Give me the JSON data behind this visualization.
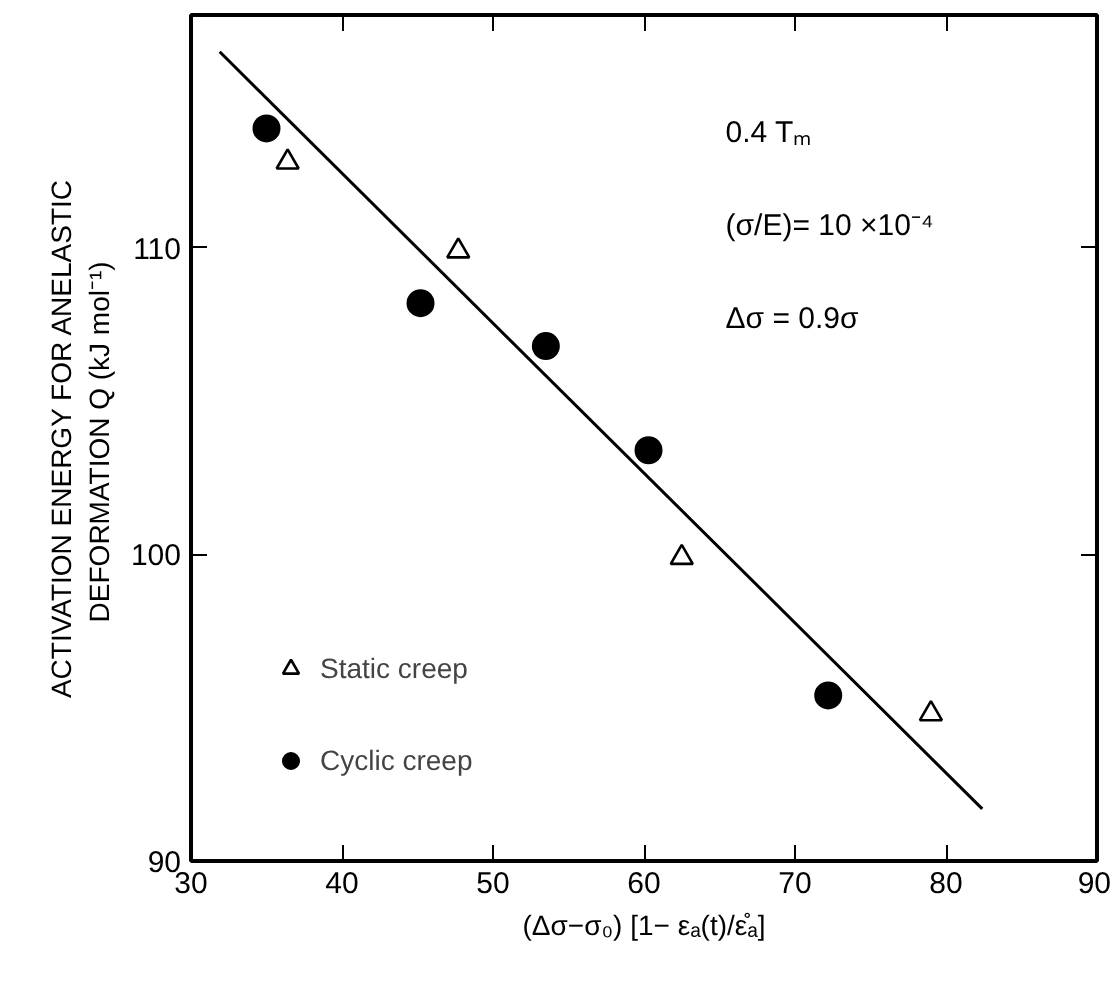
{
  "chart_data": {
    "type": "scatter",
    "xlabel": "(Δσ−σ₀) [1− εₐ(t)/ε̊ₐ]",
    "ylabel": "ACTIVATION ENERGY FOR ANELASTIC\nDEFORMATION  Q (kJ mol⁻¹)",
    "annotations": [
      "0.4 Tₘ",
      "(σ/E)= 10 ×10⁻⁴",
      "Δσ = 0.9σ"
    ],
    "series": [
      {
        "name": "Static creep",
        "marker": "triangle",
        "color": "#000000",
        "x": [
          36.4,
          47.7,
          62.5,
          79.0
        ],
        "values": [
          112.8,
          109.9,
          99.9,
          94.8
        ]
      },
      {
        "name": "Cyclic creep",
        "marker": "circle",
        "color": "#000000",
        "x": [
          35.0,
          45.2,
          53.5,
          60.3,
          72.2
        ],
        "values": [
          113.9,
          108.2,
          106.8,
          103.4,
          95.4
        ]
      },
      {
        "type": "line",
        "color": "#000000",
        "x": [
          31.9,
          82.4
        ],
        "values": [
          116.4,
          91.7
        ]
      }
    ],
    "xlim": [
      30,
      90
    ],
    "ylim": [
      90,
      117.6
    ],
    "xticks": [
      30,
      40,
      50,
      60,
      70,
      80,
      90
    ],
    "yticks": [
      90,
      100,
      110
    ],
    "grid": false,
    "legend": "bottom left"
  }
}
